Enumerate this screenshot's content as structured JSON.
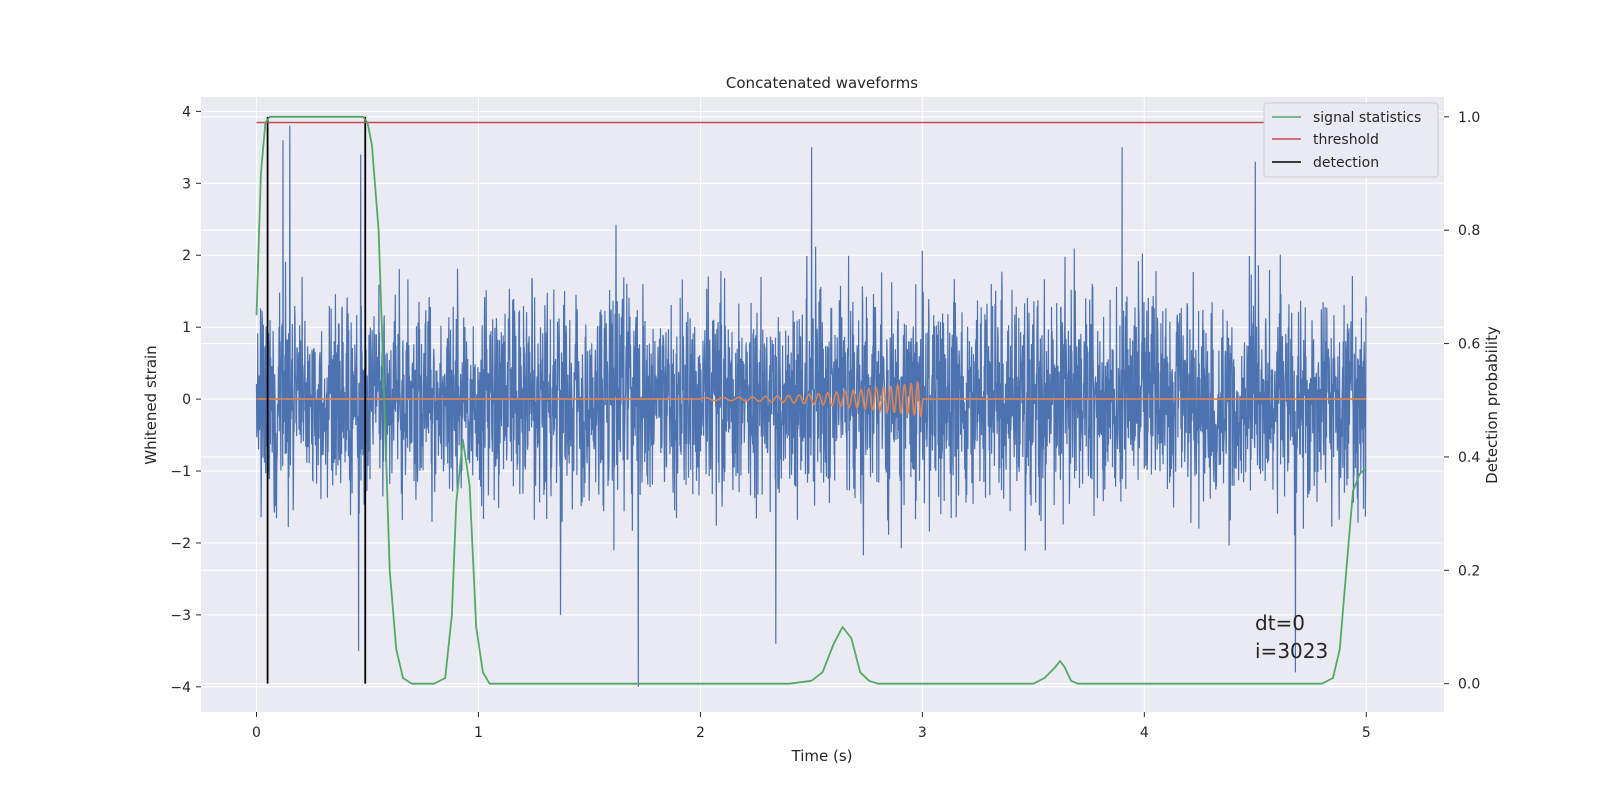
{
  "chart_data": {
    "type": "line",
    "title": "Concatenated waveforms",
    "xlabel": "Time (s)",
    "ylabel": "Whitened strain",
    "ylabel_right": "Detection probability",
    "xlim": [
      -0.25,
      5.35
    ],
    "ylim": [
      -4.35,
      4.2
    ],
    "ylim_right": [
      -0.05,
      1.035
    ],
    "xticks": [
      0,
      1,
      2,
      3,
      4,
      5
    ],
    "yticks": [
      -4,
      -3,
      -2,
      -1,
      0,
      1,
      2,
      3,
      4
    ],
    "yticks_right": [
      0.0,
      0.2,
      0.4,
      0.6,
      0.8,
      1.0
    ],
    "xtick_labels": [
      "0",
      "1",
      "2",
      "3",
      "4",
      "5"
    ],
    "ytick_labels": [
      "−4",
      "−3",
      "−2",
      "−1",
      "0",
      "1",
      "2",
      "3",
      "4"
    ],
    "ytick_right_labels": [
      "0.0",
      "0.2",
      "0.4",
      "0.6",
      "0.8",
      "1.0"
    ],
    "grid": true,
    "legend_position": "top-right",
    "colors": {
      "strain": "#4c72b0",
      "waveform": "#dd8452",
      "signal_statistics": "#55a868",
      "threshold": "#c44e52",
      "detection": "#000000",
      "background": "#eaeaf2"
    },
    "series": [
      {
        "name": "signal statistics",
        "axis": "right",
        "x": [
          0.0,
          0.02,
          0.04,
          0.06,
          0.08,
          0.1,
          0.2,
          0.3,
          0.4,
          0.45,
          0.48,
          0.5,
          0.52,
          0.55,
          0.58,
          0.6,
          0.63,
          0.66,
          0.7,
          0.8,
          0.85,
          0.88,
          0.9,
          0.93,
          0.96,
          0.99,
          1.02,
          1.05,
          1.1,
          1.5,
          2.0,
          2.4,
          2.5,
          2.55,
          2.6,
          2.64,
          2.68,
          2.72,
          2.76,
          2.8,
          3.0,
          3.5,
          3.55,
          3.6,
          3.62,
          3.64,
          3.67,
          3.7,
          4.0,
          4.5,
          4.8,
          4.85,
          4.88,
          4.91,
          4.94,
          4.97,
          5.0
        ],
        "y": [
          0.65,
          0.9,
          0.99,
          1.0,
          1.0,
          1.0,
          1.0,
          1.0,
          1.0,
          1.0,
          1.0,
          0.99,
          0.95,
          0.8,
          0.45,
          0.2,
          0.06,
          0.01,
          0.0,
          0.0,
          0.01,
          0.12,
          0.32,
          0.43,
          0.35,
          0.1,
          0.02,
          0.0,
          0.0,
          0.0,
          0.0,
          0.0,
          0.005,
          0.02,
          0.07,
          0.1,
          0.08,
          0.02,
          0.005,
          0.0,
          0.0,
          0.0,
          0.01,
          0.03,
          0.04,
          0.03,
          0.005,
          0.0,
          0.0,
          0.0,
          0.0,
          0.01,
          0.06,
          0.2,
          0.34,
          0.37,
          0.38
        ]
      },
      {
        "name": "threshold",
        "axis": "right",
        "x": [
          0.0,
          5.0
        ],
        "y": [
          0.99,
          0.99
        ]
      },
      {
        "name": "detection",
        "axis": "right",
        "x": [
          0.05,
          0.49
        ],
        "y_range": [
          0.0,
          1.0
        ]
      },
      {
        "name": "",
        "axis": "left",
        "kind": "whitened strain noise",
        "x_range": [
          0.0,
          5.0
        ],
        "typical_range": [
          -2.7,
          3.0
        ],
        "peaks": [
          [
            0.15,
            3.8
          ],
          [
            0.12,
            3.6
          ],
          [
            2.5,
            3.5
          ],
          [
            3.9,
            3.5
          ],
          [
            0.47,
            3.4
          ],
          [
            4.5,
            3.3
          ],
          [
            1.72,
            -4.0
          ],
          [
            4.68,
            -3.8
          ],
          [
            0.46,
            -3.5
          ],
          [
            2.34,
            -3.4
          ],
          [
            1.37,
            -3.0
          ]
        ]
      },
      {
        "name": "",
        "axis": "left",
        "kind": "injected chirp waveform",
        "x_range": [
          2.0,
          3.0
        ],
        "start_amplitude": 0.02,
        "end_amplitude": 0.25
      }
    ],
    "annotations": [
      "dt=0",
      "i=3023"
    ]
  }
}
